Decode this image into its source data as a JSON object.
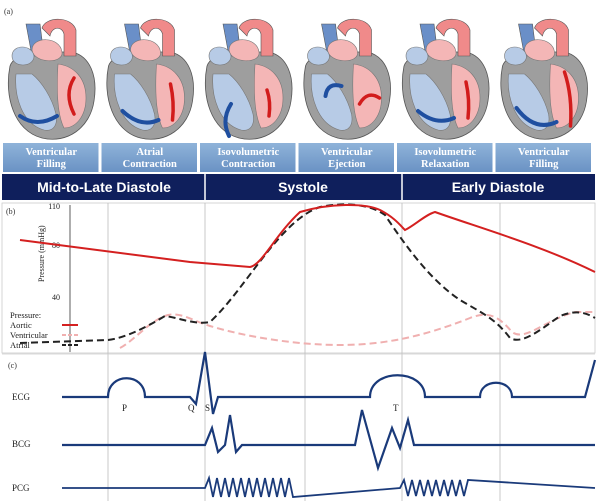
{
  "panel_a": {
    "tag": "(a)",
    "stages": [
      {
        "line1": "Ventricular",
        "line2": "Filling"
      },
      {
        "line1": "Atrial",
        "line2": "Contraction"
      },
      {
        "line1": "Isovolumetric",
        "line2": "Contraction"
      },
      {
        "line1": "Ventricular",
        "line2": "Ejection"
      },
      {
        "line1": "Isovolumetric",
        "line2": "Relaxation"
      },
      {
        "line1": "Ventricular",
        "line2": "Filling"
      }
    ],
    "phases": [
      "Mid-to-Late Diastole",
      "Systole",
      "Early Diastole"
    ]
  },
  "panel_b": {
    "tag": "(b)",
    "ylabel": "Pressure (mmHg)",
    "ticks": [
      "110",
      "80",
      "40"
    ],
    "legend_title": "Pressure:",
    "legend": [
      "Aortic",
      "Ventricular",
      "Atrial"
    ],
    "colors": {
      "aortic": "#d42020",
      "ventricular": "#222222",
      "atrial": "#f0b0b0"
    }
  },
  "panel_c": {
    "tag": "(c)",
    "rows": [
      "ECG",
      "BCG",
      "PCG"
    ],
    "waves": [
      "P",
      "Q",
      "S",
      "T"
    ],
    "color": "#1a3a7a"
  }
}
